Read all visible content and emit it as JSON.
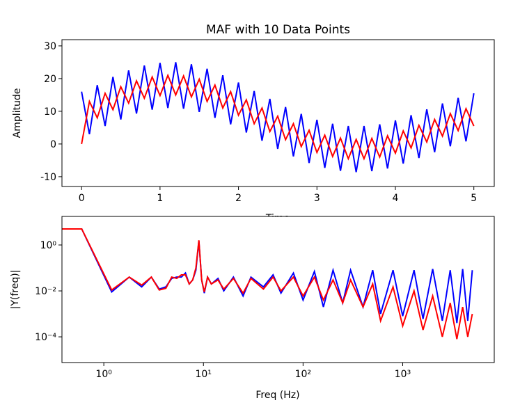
{
  "chart_data": [
    {
      "type": "line",
      "title": "MAF with 10 Data Points",
      "x_label": "Time",
      "y_label": "Amplitude",
      "x": [
        0,
        0.1,
        0.2,
        0.3,
        0.4,
        0.5,
        0.6,
        0.7,
        0.8,
        0.9,
        1.0,
        1.1,
        1.2,
        1.3,
        1.4,
        1.5,
        1.6,
        1.7,
        1.8,
        1.9,
        2.0,
        2.1,
        2.2,
        2.3,
        2.4,
        2.5,
        2.6,
        2.7,
        2.8,
        2.9,
        3.0,
        3.1,
        3.2,
        3.3,
        3.4,
        3.5,
        3.6,
        3.7,
        3.8,
        3.9,
        4.0,
        4.1,
        4.2,
        4.3,
        4.4,
        4.5,
        4.6,
        4.7,
        4.8,
        4.9,
        5.0
      ],
      "series": [
        {
          "color": "#0000ff",
          "values": [
            16,
            3,
            18,
            5.5,
            20.5,
            7.5,
            22.5,
            9.3,
            24,
            10.5,
            24.8,
            11,
            25,
            10.8,
            24.4,
            9.8,
            23,
            8,
            21,
            6,
            18.8,
            3.5,
            16.2,
            1,
            13.8,
            -1.5,
            11.3,
            -3.8,
            9.2,
            -5.8,
            7.4,
            -7.3,
            6.2,
            -8.2,
            5.5,
            -8.6,
            5.5,
            -8.3,
            6,
            -7.5,
            7.2,
            -6,
            8.8,
            -4.3,
            10.6,
            -2.5,
            12.4,
            -0.7,
            14.1,
            0.8,
            15.5
          ]
        },
        {
          "color": "#ff0000",
          "values": [
            0,
            13,
            8,
            15.5,
            10.5,
            17.5,
            12.5,
            19.3,
            14,
            20.5,
            14.8,
            21,
            15,
            20.8,
            14.4,
            19.8,
            13,
            18,
            11,
            16,
            8.8,
            13.5,
            6.2,
            11,
            3.8,
            8.5,
            1.3,
            6.2,
            -0.8,
            4.2,
            -2.6,
            2.7,
            -3.8,
            1.8,
            -4.5,
            1.4,
            -4.5,
            1.7,
            -4,
            2.5,
            -2.8,
            4,
            -1.2,
            5.7,
            0.6,
            7.5,
            2.4,
            9.3,
            4.1,
            10.8,
            5.5
          ]
        }
      ],
      "xlim": [
        -0.25,
        5.26
      ],
      "ylim": [
        -13,
        31.9
      ],
      "xticks": [
        0,
        1,
        2,
        3,
        4,
        5
      ],
      "yticks": [
        -10,
        0,
        10,
        20,
        30
      ]
    },
    {
      "type": "line",
      "x_label": "Freq (Hz)",
      "y_label": "|Y(freq)|",
      "log_x": true,
      "log_y": true,
      "x": [
        0.2,
        0.6,
        1.2,
        1.8,
        2.4,
        3.0,
        3.6,
        4.2,
        4.8,
        5.4,
        6.0,
        6.6,
        7.2,
        7.8,
        8.4,
        9.0,
        9.6,
        10.2,
        11,
        12,
        14,
        16,
        20,
        25,
        30,
        40,
        50,
        60,
        80,
        100,
        130,
        160,
        200,
        250,
        300,
        400,
        500,
        600,
        800,
        1000,
        1300,
        1600,
        2000,
        2500,
        3000,
        3500,
        4000,
        4500,
        5000
      ],
      "series": [
        {
          "color": "#0000ff",
          "values": [
            5,
            5,
            0.009,
            0.04,
            0.015,
            0.04,
            0.012,
            0.015,
            0.035,
            0.04,
            0.04,
            0.06,
            0.02,
            0.03,
            0.08,
            1.5,
            0.03,
            0.008,
            0.04,
            0.02,
            0.035,
            0.01,
            0.04,
            0.006,
            0.04,
            0.015,
            0.05,
            0.008,
            0.06,
            0.004,
            0.07,
            0.002,
            0.08,
            0.003,
            0.08,
            0.002,
            0.08,
            0.001,
            0.08,
            0.0008,
            0.08,
            0.0006,
            0.09,
            0.0005,
            0.08,
            0.0004,
            0.09,
            0.0005,
            0.08
          ]
        },
        {
          "color": "#ff0000",
          "values": [
            5,
            5,
            0.011,
            0.04,
            0.018,
            0.04,
            0.011,
            0.013,
            0.04,
            0.035,
            0.05,
            0.05,
            0.02,
            0.03,
            0.1,
            1.6,
            0.03,
            0.009,
            0.04,
            0.02,
            0.03,
            0.012,
            0.035,
            0.008,
            0.035,
            0.012,
            0.04,
            0.01,
            0.04,
            0.006,
            0.04,
            0.004,
            0.03,
            0.003,
            0.03,
            0.002,
            0.02,
            0.0005,
            0.015,
            0.0003,
            0.01,
            0.0002,
            0.006,
            0.0001,
            0.003,
            8e-05,
            0.002,
            0.0001,
            0.001
          ]
        }
      ],
      "xlim": [
        0.38,
        8300
      ],
      "ylim": [
        7.6e-06,
        17.5
      ],
      "xticks": [
        {
          "value": 1,
          "label": "10⁰"
        },
        {
          "value": 10,
          "label": "10¹"
        },
        {
          "value": 100,
          "label": "10²"
        },
        {
          "value": 1000,
          "label": "10³"
        }
      ],
      "yticks": [
        {
          "value": 0.0001,
          "label": "10⁻⁴"
        },
        {
          "value": 0.01,
          "label": "10⁻²"
        },
        {
          "value": 1,
          "label": "10⁰"
        }
      ]
    }
  ]
}
